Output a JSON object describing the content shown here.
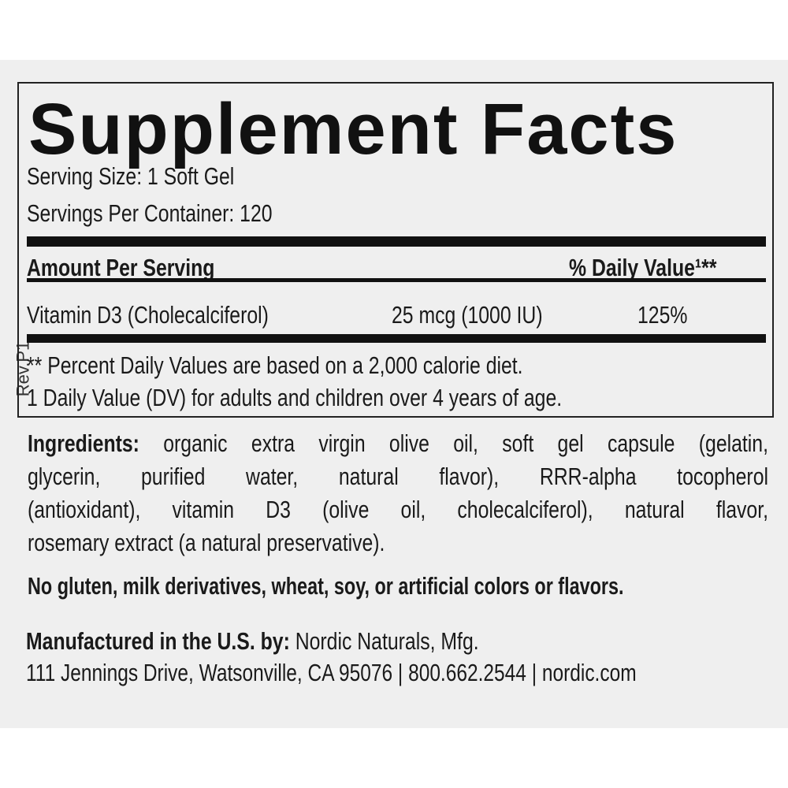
{
  "label": {
    "title": "Supplement Facts",
    "serving_size": "Serving Size: 1 Soft Gel",
    "servings_per_container": "Servings Per Container: 120",
    "amount_header": "Amount Per Serving",
    "dv_header": "% Daily Value¹**",
    "nutrients": [
      {
        "name": "Vitamin D3 (Cholecalciferol)",
        "amount": "25 mcg (1000 IU)",
        "dv": "125%"
      }
    ],
    "footnotes": [
      "** Percent Daily Values are based on a 2,000 calorie diet.",
      "1  Daily Value (DV) for adults and children over 4 years of age."
    ],
    "revision": "Rev.P1"
  },
  "ingredients": {
    "label": "Ingredients:",
    "lines": [
      " organic extra virgin olive oil, soft gel capsule (gelatin,",
      "glycerin, purified water, natural flavor), RRR-alpha tocopherol",
      "(antioxidant), vitamin D3 (olive oil, cholecalciferol), natural flavor,",
      "rosemary extract (a natural preservative)."
    ]
  },
  "allergen_statement": "No gluten, milk derivatives, wheat, soy, or artificial colors or flavors.",
  "manufacturer": {
    "label": "Manufactured in the U.S. by:",
    "name": " Nordic Naturals, Mfg.",
    "address": "111 Jennings Drive, Watsonville, CA 95076 | 800.662.2544 | nordic.com"
  }
}
